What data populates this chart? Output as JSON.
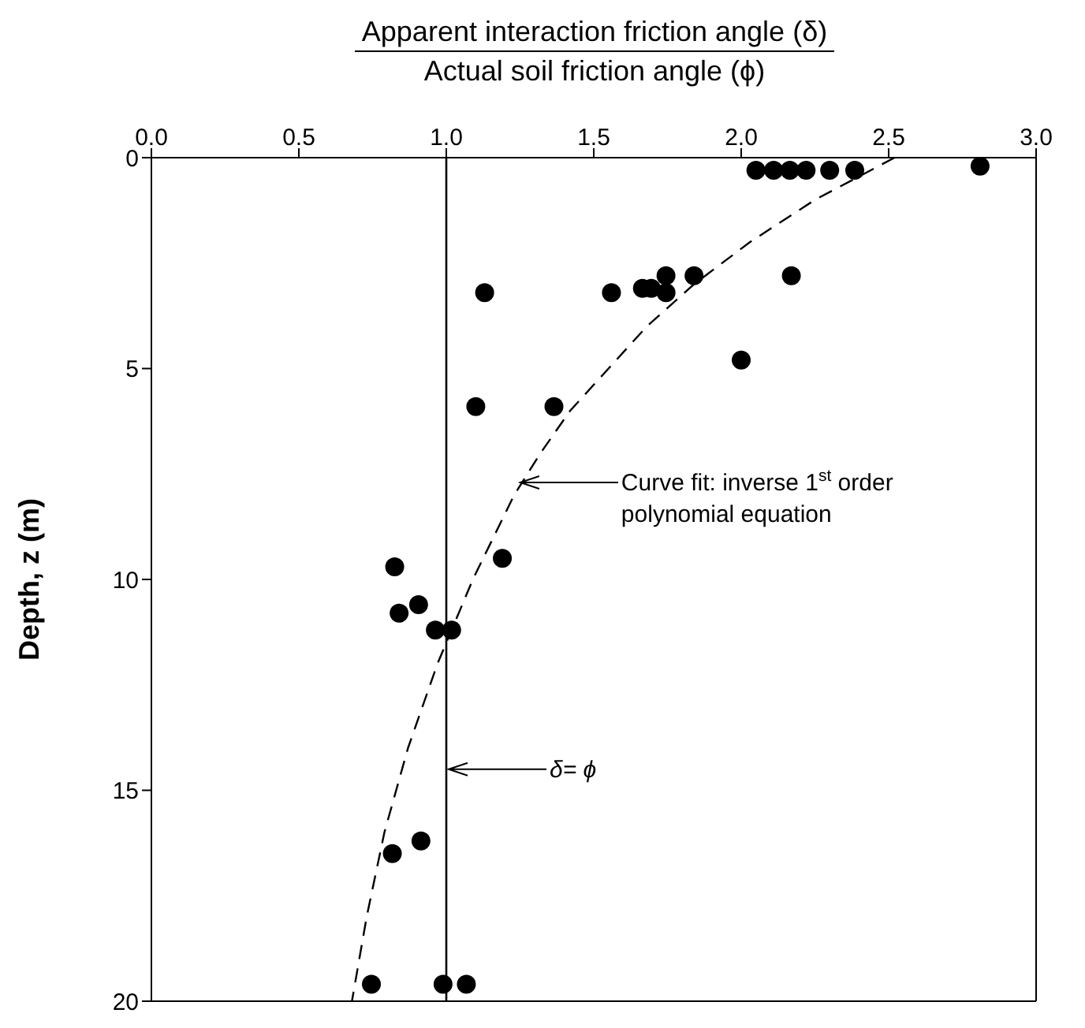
{
  "chart_data": {
    "type": "scatter",
    "xlabel": "Apparent interaction friction angle (δ)\nActual soil friction angle (ϕ)",
    "ylabel": "Depth, z (m)",
    "xlim": [
      0,
      3
    ],
    "ylim": [
      20,
      0
    ],
    "xticks": [
      {
        "value": 0,
        "label": "0.0"
      },
      {
        "value": 0.5,
        "label": "0.5"
      },
      {
        "value": 1,
        "label": "1.0"
      },
      {
        "value": 1.5,
        "label": "1.5"
      },
      {
        "value": 2,
        "label": "2.0"
      },
      {
        "value": 2.5,
        "label": "2.5"
      },
      {
        "value": 3,
        "label": "3.0"
      }
    ],
    "yticks": [
      0,
      5,
      10,
      15,
      20
    ],
    "series": [
      {
        "type": "scatter",
        "color": "#000000",
        "marker": "circle",
        "x": [
          2.05,
          2.11,
          2.165,
          2.22,
          2.3,
          2.385,
          2.81,
          1.13,
          1.56,
          1.665,
          1.695,
          1.745,
          1.745,
          1.84,
          2.17,
          2.0,
          1.1,
          1.365,
          0.825,
          1.19,
          0.84,
          0.906,
          0.963,
          1.018,
          0.817,
          0.914,
          0.746,
          0.989,
          1.068
        ],
        "values": [
          0.3,
          0.3,
          0.3,
          0.3,
          0.3,
          0.3,
          0.2,
          3.2,
          3.2,
          3.1,
          3.1,
          2.8,
          3.2,
          2.8,
          2.8,
          4.8,
          5.9,
          5.9,
          9.7,
          9.5,
          10.8,
          10.6,
          11.2,
          11.2,
          16.5,
          16.2,
          19.6,
          19.6,
          19.6
        ]
      },
      {
        "type": "line",
        "color": "#000000",
        "marker": "none",
        "line_style": "dashed",
        "x": [
          2.52,
          2.25,
          2.03,
          1.84,
          1.68,
          1.55,
          1.42,
          1.32,
          1.23,
          1.09,
          0.97,
          0.87,
          0.79,
          0.73,
          0.68
        ],
        "values": [
          0,
          1,
          2,
          3,
          4,
          5,
          6,
          7,
          8,
          10,
          12,
          14,
          16,
          18,
          20
        ]
      }
    ],
    "ref_lines": [
      {
        "axis": "x",
        "value": 1,
        "color": "#000000",
        "line_style": "solid"
      }
    ],
    "annotations": [
      "Curve fit: inverse 1$^{st}$ order polynomial equation",
      "δ= ϕ"
    ]
  }
}
